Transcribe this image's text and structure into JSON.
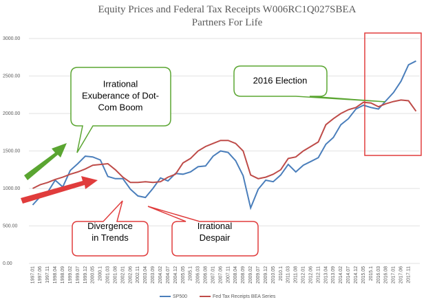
{
  "chart_data": {
    "type": "line",
    "title": "Equity Prices and Federal Tax Receipts W006RC1Q027SBEA",
    "subtitle": "Partners For Life",
    "categories": [
      "1997.01",
      "1997.06",
      "1997.11",
      "1998.04",
      "1998.09",
      "1999.02",
      "1999.07",
      "1999.12",
      "2000.05",
      "2000.1",
      "2001.03",
      "2001.08",
      "2002.01",
      "2002.06",
      "2002.11",
      "2003.04",
      "2003.09",
      "2004.02",
      "2004.07",
      "2004.12",
      "2005.05",
      "2005.1",
      "2006.03",
      "2006.08",
      "2007.01",
      "2007.06",
      "2007.11",
      "2008.04",
      "2008.09",
      "2009.02",
      "2009.07",
      "2009.12",
      "2010.05",
      "2010.1",
      "2011.03",
      "2011.08",
      "2012.01",
      "2012.06",
      "2012.11",
      "2013.04",
      "2013.09",
      "2014.02",
      "2014.07",
      "2014.12",
      "2015.05",
      "2015.1",
      "2016.03",
      "2016.08",
      "2017.01",
      "2017.06",
      "2017.11",
      null
    ],
    "series": [
      {
        "name": "SP500",
        "color": "#4a7ebb",
        "values": [
          780,
          890,
          950,
          1110,
          1020,
          1240,
          1330,
          1430,
          1420,
          1380,
          1160,
          1130,
          1130,
          990,
          900,
          880,
          1000,
          1140,
          1100,
          1200,
          1190,
          1220,
          1290,
          1300,
          1430,
          1500,
          1480,
          1370,
          1170,
          740,
          990,
          1110,
          1090,
          1180,
          1320,
          1220,
          1310,
          1360,
          1410,
          1590,
          1680,
          1850,
          1930,
          2060,
          2110,
          2080,
          2060,
          2170,
          2280,
          2430,
          2650,
          2700
        ]
      },
      {
        "name": "Fed Tax Receipts BEA Series",
        "color": "#be4b48",
        "values": [
          1000,
          1050,
          1080,
          1120,
          1150,
          1190,
          1220,
          1260,
          1310,
          1320,
          1330,
          1250,
          1150,
          1080,
          1080,
          1090,
          1080,
          1090,
          1150,
          1190,
          1340,
          1400,
          1500,
          1560,
          1600,
          1640,
          1640,
          1600,
          1500,
          1180,
          1130,
          1150,
          1190,
          1250,
          1400,
          1420,
          1500,
          1560,
          1620,
          1850,
          1930,
          2000,
          2050,
          2080,
          2150,
          2140,
          2090,
          2130,
          2160,
          2180,
          2170,
          2030
        ]
      }
    ],
    "ylim": [
      0,
      3000
    ],
    "yticks": [
      {
        "value": 0,
        "label": "0.00"
      },
      {
        "value": 500,
        "label": "500.00"
      },
      {
        "value": 1000,
        "label": "1000.00"
      },
      {
        "value": 1500,
        "label": "1500.00"
      },
      {
        "value": 2000,
        "label": "2000.00"
      },
      {
        "value": 2500,
        "label": "2500.00"
      },
      {
        "value": 3000,
        "label": "3000.00"
      }
    ],
    "grid": true,
    "legend": "bottom",
    "annotations": [
      [
        "Irrational",
        "Exuberance of Dot-",
        "Com Boom"
      ],
      [
        "2016 Election"
      ],
      [
        "Divergence",
        "in Trends"
      ],
      [
        "Irrational",
        "Despair"
      ]
    ]
  }
}
